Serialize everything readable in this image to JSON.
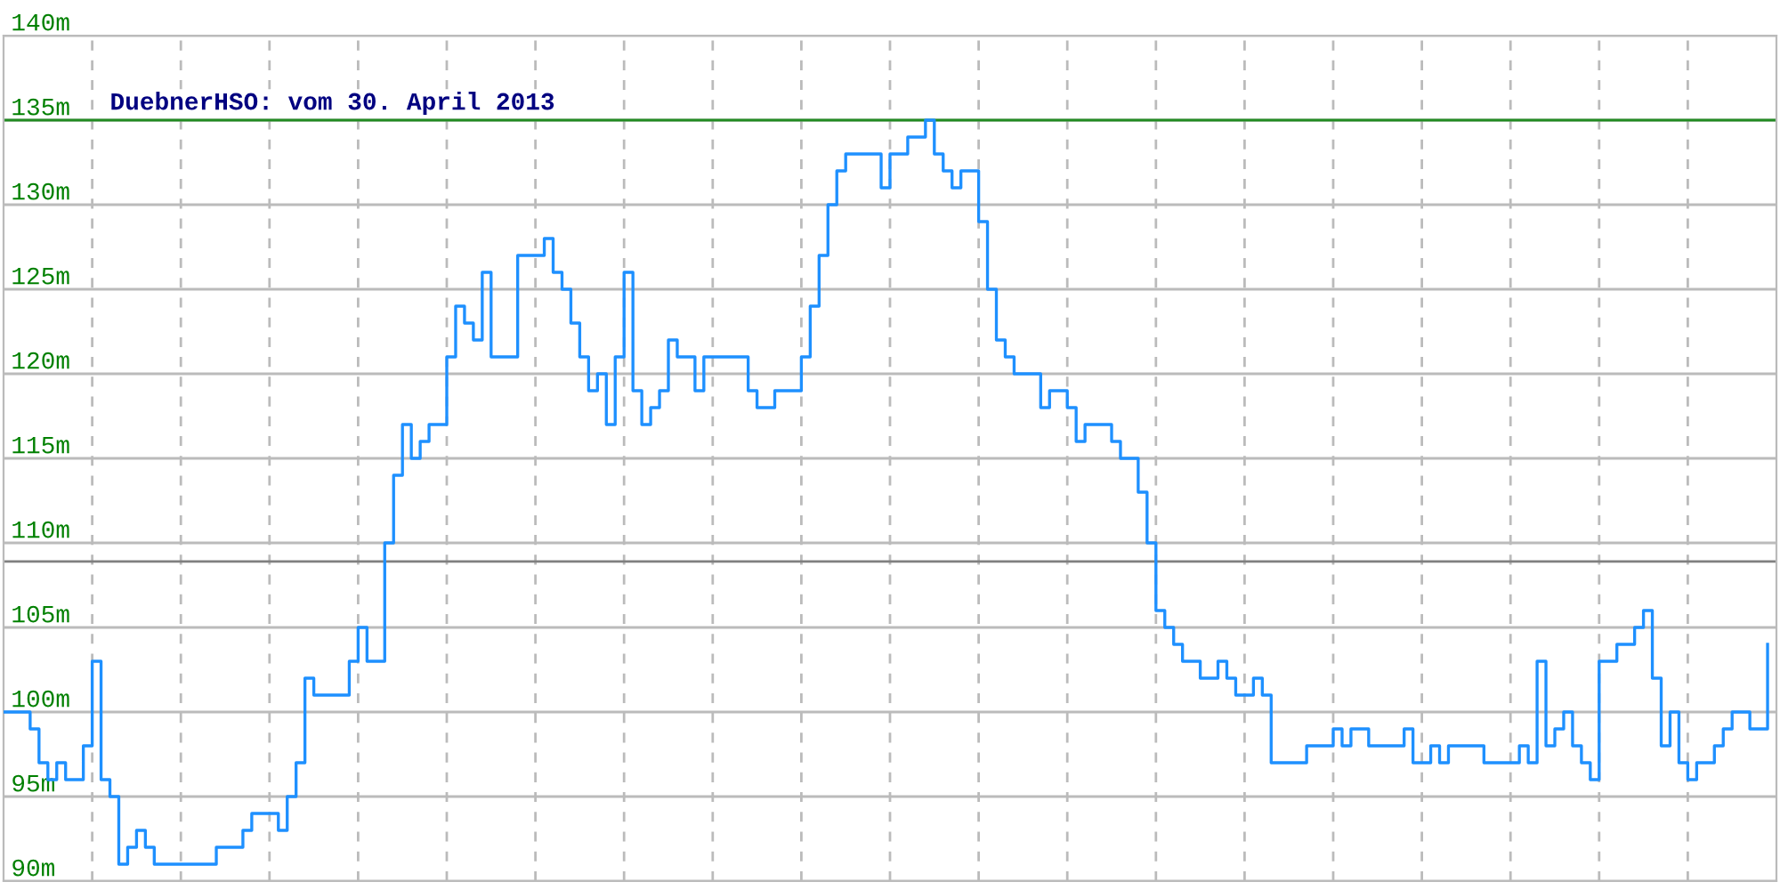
{
  "chart_data": {
    "type": "step",
    "title": "DuebnerHSO: vom 30. April 2013",
    "categories": [
      null,
      null,
      null,
      null,
      null,
      null,
      null,
      null,
      null,
      null,
      null,
      null,
      null,
      null,
      null,
      null,
      null,
      null,
      null,
      null,
      null,
      null,
      null,
      null,
      null,
      null,
      null,
      null,
      null,
      null,
      null,
      null,
      null,
      null,
      null,
      null,
      null,
      null,
      null,
      null,
      null,
      null,
      null,
      null,
      null,
      null,
      null,
      null,
      null,
      null,
      null,
      null,
      null,
      null,
      null,
      null,
      null,
      null,
      null,
      null,
      null,
      null,
      null,
      null,
      null,
      null,
      null,
      null,
      null,
      null,
      null,
      null,
      null,
      null,
      null,
      null,
      null,
      null,
      null,
      null,
      null,
      null,
      null,
      null,
      null,
      null,
      null,
      null,
      null,
      null,
      null,
      null,
      null,
      null,
      null,
      null,
      null,
      null,
      null,
      null,
      null,
      null,
      null,
      null,
      null,
      null,
      null,
      null,
      null,
      null,
      null,
      null,
      null,
      null,
      null,
      null,
      null,
      null,
      null,
      null,
      null,
      null,
      null,
      null,
      null,
      null,
      null,
      null,
      null,
      null,
      null,
      null,
      null,
      null,
      null,
      null,
      null,
      null,
      null,
      null,
      null,
      null,
      null,
      null,
      null,
      null,
      null,
      null,
      null,
      null,
      null,
      null,
      null,
      null,
      null,
      null,
      null,
      null,
      null,
      null,
      null,
      null,
      null,
      null,
      null,
      null,
      null,
      null,
      null,
      null,
      null,
      null,
      null,
      null,
      null,
      null,
      null,
      null,
      null,
      null,
      null,
      null,
      null,
      null,
      null,
      null,
      null,
      null,
      null,
      null,
      null,
      null,
      null,
      null,
      null,
      null,
      null,
      null,
      null,
      null
    ],
    "series": [
      {
        "color": "#1e90ff",
        "values": [
          100,
          100,
          100,
          99,
          97,
          96,
          97,
          96,
          96,
          98,
          103,
          96,
          95,
          91,
          92,
          93,
          92,
          91,
          91,
          91,
          91,
          91,
          91,
          91,
          92,
          92,
          92,
          93,
          94,
          94,
          94,
          93,
          95,
          97,
          102,
          101,
          101,
          101,
          101,
          103,
          105,
          103,
          103,
          110,
          114,
          117,
          115,
          116,
          117,
          117,
          121,
          124,
          123,
          122,
          126,
          121,
          121,
          121,
          127,
          127,
          127,
          128,
          126,
          125,
          123,
          121,
          119,
          120,
          117,
          121,
          126,
          119,
          117,
          118,
          119,
          122,
          121,
          121,
          119,
          121,
          121,
          121,
          121,
          121,
          119,
          118,
          118,
          119,
          119,
          119,
          121,
          124,
          127,
          130,
          132,
          133,
          133,
          133,
          133,
          131,
          133,
          133,
          134,
          134,
          135,
          133,
          132,
          131,
          132,
          132,
          129,
          125,
          122,
          121,
          120,
          120,
          120,
          118,
          119,
          119,
          118,
          116,
          117,
          117,
          117,
          116,
          115,
          115,
          113,
          110,
          106,
          105,
          104,
          103,
          103,
          102,
          102,
          103,
          102,
          101,
          101,
          102,
          101,
          97,
          97,
          97,
          97,
          98,
          98,
          98,
          99,
          98,
          99,
          99,
          98,
          98,
          98,
          98,
          99,
          97,
          97,
          98,
          97,
          98,
          98,
          98,
          98,
          97,
          97,
          97,
          97,
          98,
          97,
          103,
          98,
          99,
          100,
          98,
          97,
          96,
          103,
          103,
          104,
          104,
          105,
          106,
          102,
          98,
          100,
          97,
          96,
          97,
          97,
          98,
          99,
          100,
          100,
          99,
          99,
          104
        ]
      }
    ],
    "ylim": [
      90,
      140
    ],
    "yticks": [
      {
        "value": 90,
        "label": "90m"
      },
      {
        "value": 95,
        "label": "95m"
      },
      {
        "value": 100,
        "label": "100m"
      },
      {
        "value": 105,
        "label": "105m"
      },
      {
        "value": 110,
        "label": "110m"
      },
      {
        "value": 115,
        "label": "115m"
      },
      {
        "value": 120,
        "label": "120m"
      },
      {
        "value": 125,
        "label": "125m"
      },
      {
        "value": 130,
        "label": "130m"
      },
      {
        "value": 135,
        "label": "135m"
      },
      {
        "value": 140,
        "label": "140m"
      }
    ],
    "ref_lines": [
      {
        "axis": "y",
        "value": 135,
        "color": "#228b22"
      },
      {
        "axis": "y",
        "value": 108.9,
        "color": "#808080"
      }
    ],
    "grid": true,
    "legend": false,
    "tick_labels": "y"
  }
}
